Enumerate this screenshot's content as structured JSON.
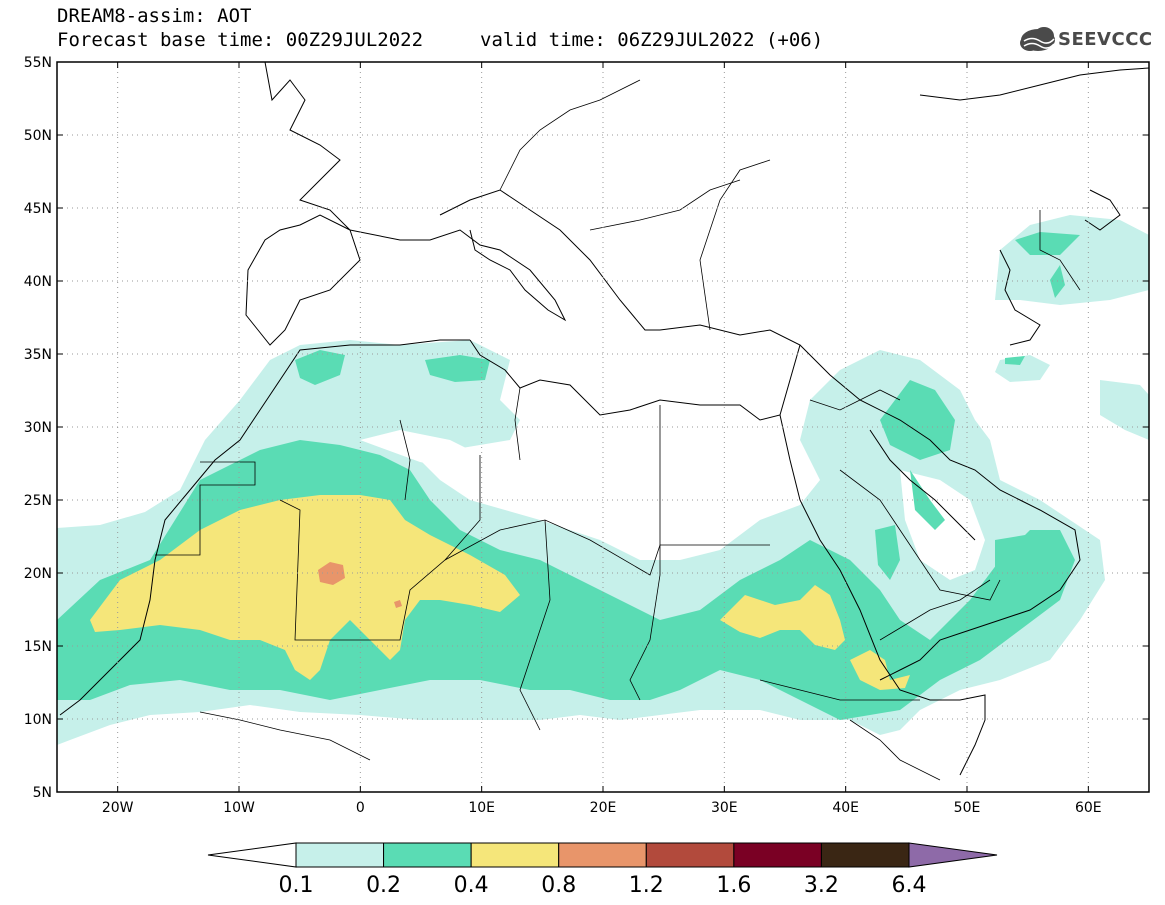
{
  "title": {
    "line1": "DREAM8-assim: AOT",
    "line2": "Forecast base time: 00Z29JUL2022",
    "valid": "valid time: 06Z29JUL2022 (+06)"
  },
  "logo": {
    "text": "SEEVCCC",
    "icon": "cloud-icon"
  },
  "map": {
    "lon_range": [
      -25,
      65
    ],
    "lat_range": [
      5,
      55
    ],
    "lat_labels": [
      "55N",
      "50N",
      "45N",
      "40N",
      "35N",
      "30N",
      "25N",
      "20N",
      "15N",
      "10N",
      "5N"
    ],
    "lon_labels": [
      "20W",
      "10W",
      "0",
      "10E",
      "20E",
      "30E",
      "40E",
      "50E",
      "60E"
    ],
    "grid": "dotted",
    "variable": "aerosol optical thickness"
  },
  "legend": {
    "levels": [
      "0.1",
      "0.2",
      "0.4",
      "0.8",
      "1.2",
      "1.6",
      "3.2",
      "6.4"
    ],
    "colors": [
      "#ffffff",
      "#c6f0ea",
      "#5adcb4",
      "#f5e67a",
      "#e8956a",
      "#b24a3c",
      "#7a0024",
      "#3a2614",
      "#8e6aa8"
    ]
  },
  "chart_data": {
    "type": "heatmap",
    "title": "DREAM8-assim: AOT",
    "xlabel": "",
    "ylabel": "",
    "xlim": [
      -25,
      65
    ],
    "ylim": [
      5,
      55
    ],
    "contour_levels": [
      0.1,
      0.2,
      0.4,
      0.8,
      1.2,
      1.6,
      3.2,
      6.4
    ],
    "regions": [
      {
        "name": "0.1-0.2",
        "color": "#c6f0ea"
      },
      {
        "name": "0.2-0.4",
        "color": "#5adcb4"
      },
      {
        "name": "0.4-0.8",
        "color": "#f5e67a"
      },
      {
        "name": "0.8-1.2",
        "color": "#e8956a"
      }
    ]
  }
}
